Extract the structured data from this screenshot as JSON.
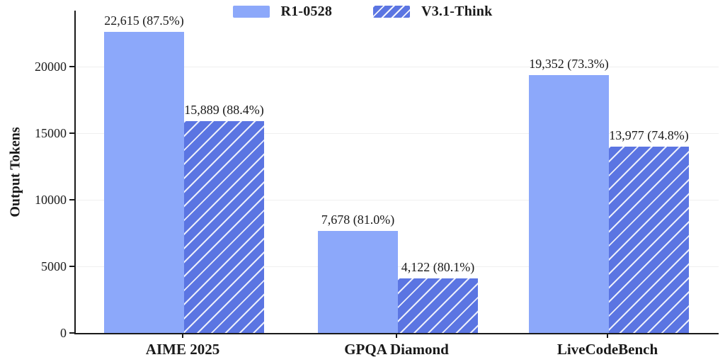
{
  "chart_data": {
    "type": "bar",
    "title": "",
    "xlabel": "",
    "ylabel": "Output Tokens",
    "categories": [
      "AIME 2025",
      "GPQA Diamond",
      "LiveCodeBench"
    ],
    "series": [
      {
        "name": "R1-0528",
        "style": "solid",
        "color": "#8CA8FA",
        "values": [
          22615,
          7678,
          19352
        ],
        "accuracy_pct": [
          87.5,
          81.0,
          73.3
        ],
        "bar_labels": [
          "22,615 (87.5%)",
          "7,678 (81.0%)",
          "19,352 (73.3%)"
        ]
      },
      {
        "name": "V3.1-Think",
        "style": "hatched",
        "color": "#5B75E2",
        "hatch_color": "#ffffff",
        "hatch_pattern": "forward-diagonal",
        "values": [
          15889,
          4122,
          13977
        ],
        "accuracy_pct": [
          88.4,
          80.1,
          74.8
        ],
        "bar_labels": [
          "15,889 (88.4%)",
          "4,122 (80.1%)",
          "13,977 (74.8%)"
        ]
      }
    ],
    "yticks": [
      0,
      5000,
      10000,
      15000,
      20000
    ],
    "ylim": [
      0,
      24200
    ],
    "grid": "horizontal-faint",
    "legend_position": "top-center"
  },
  "colors": {
    "background": "#ffffff",
    "axis": "#1a1a1a",
    "text": "#1a1a1a",
    "gridline": "#efefef",
    "series_solid": "#8CA8FA",
    "series_hatched": "#5B75E2"
  }
}
